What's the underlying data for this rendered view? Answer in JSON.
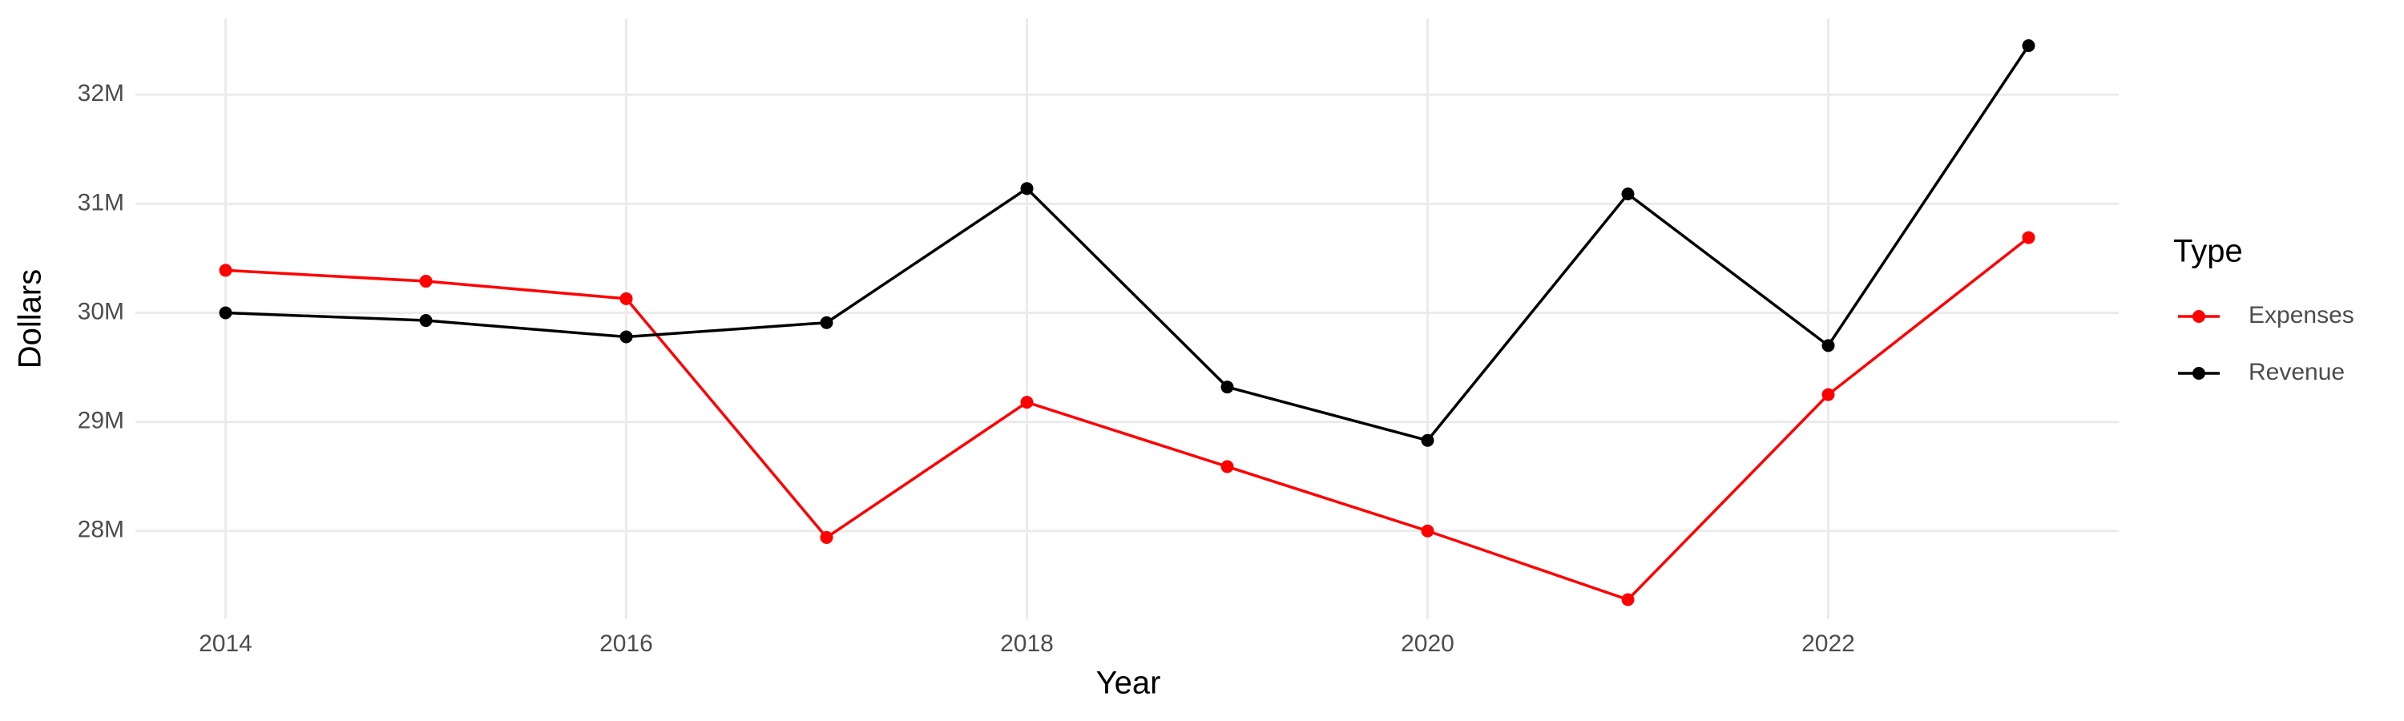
{
  "chart_data": {
    "type": "line",
    "x_label": "Year",
    "y_label": "Dollars",
    "legend_title": "Type",
    "x": [
      2014,
      2015,
      2016,
      2017,
      2018,
      2019,
      2020,
      2021,
      2022,
      2023
    ],
    "series": [
      {
        "name": "Expenses",
        "color": "#ff0000",
        "values": [
          30390000,
          30290000,
          30130000,
          27940000,
          29180000,
          28590000,
          28000000,
          27370000,
          29250000,
          30690000
        ]
      },
      {
        "name": "Revenue",
        "color": "#000000",
        "values": [
          30000000,
          29930000,
          29780000,
          29910000,
          31140000,
          29320000,
          28830000,
          31090000,
          29700000,
          32450000
        ]
      }
    ],
    "xlim": [
      2013.55,
      2023.45
    ],
    "xticks": [
      2014,
      2016,
      2018,
      2020,
      2022
    ],
    "ylim": [
      27190000,
      32700000
    ],
    "yticks": [
      {
        "value": 28000000,
        "label": "28M"
      },
      {
        "value": 29000000,
        "label": "29M"
      },
      {
        "value": 30000000,
        "label": "30M"
      },
      {
        "value": 31000000,
        "label": "31M"
      },
      {
        "value": 32000000,
        "label": "32M"
      }
    ],
    "grid": true,
    "legend": "right"
  }
}
